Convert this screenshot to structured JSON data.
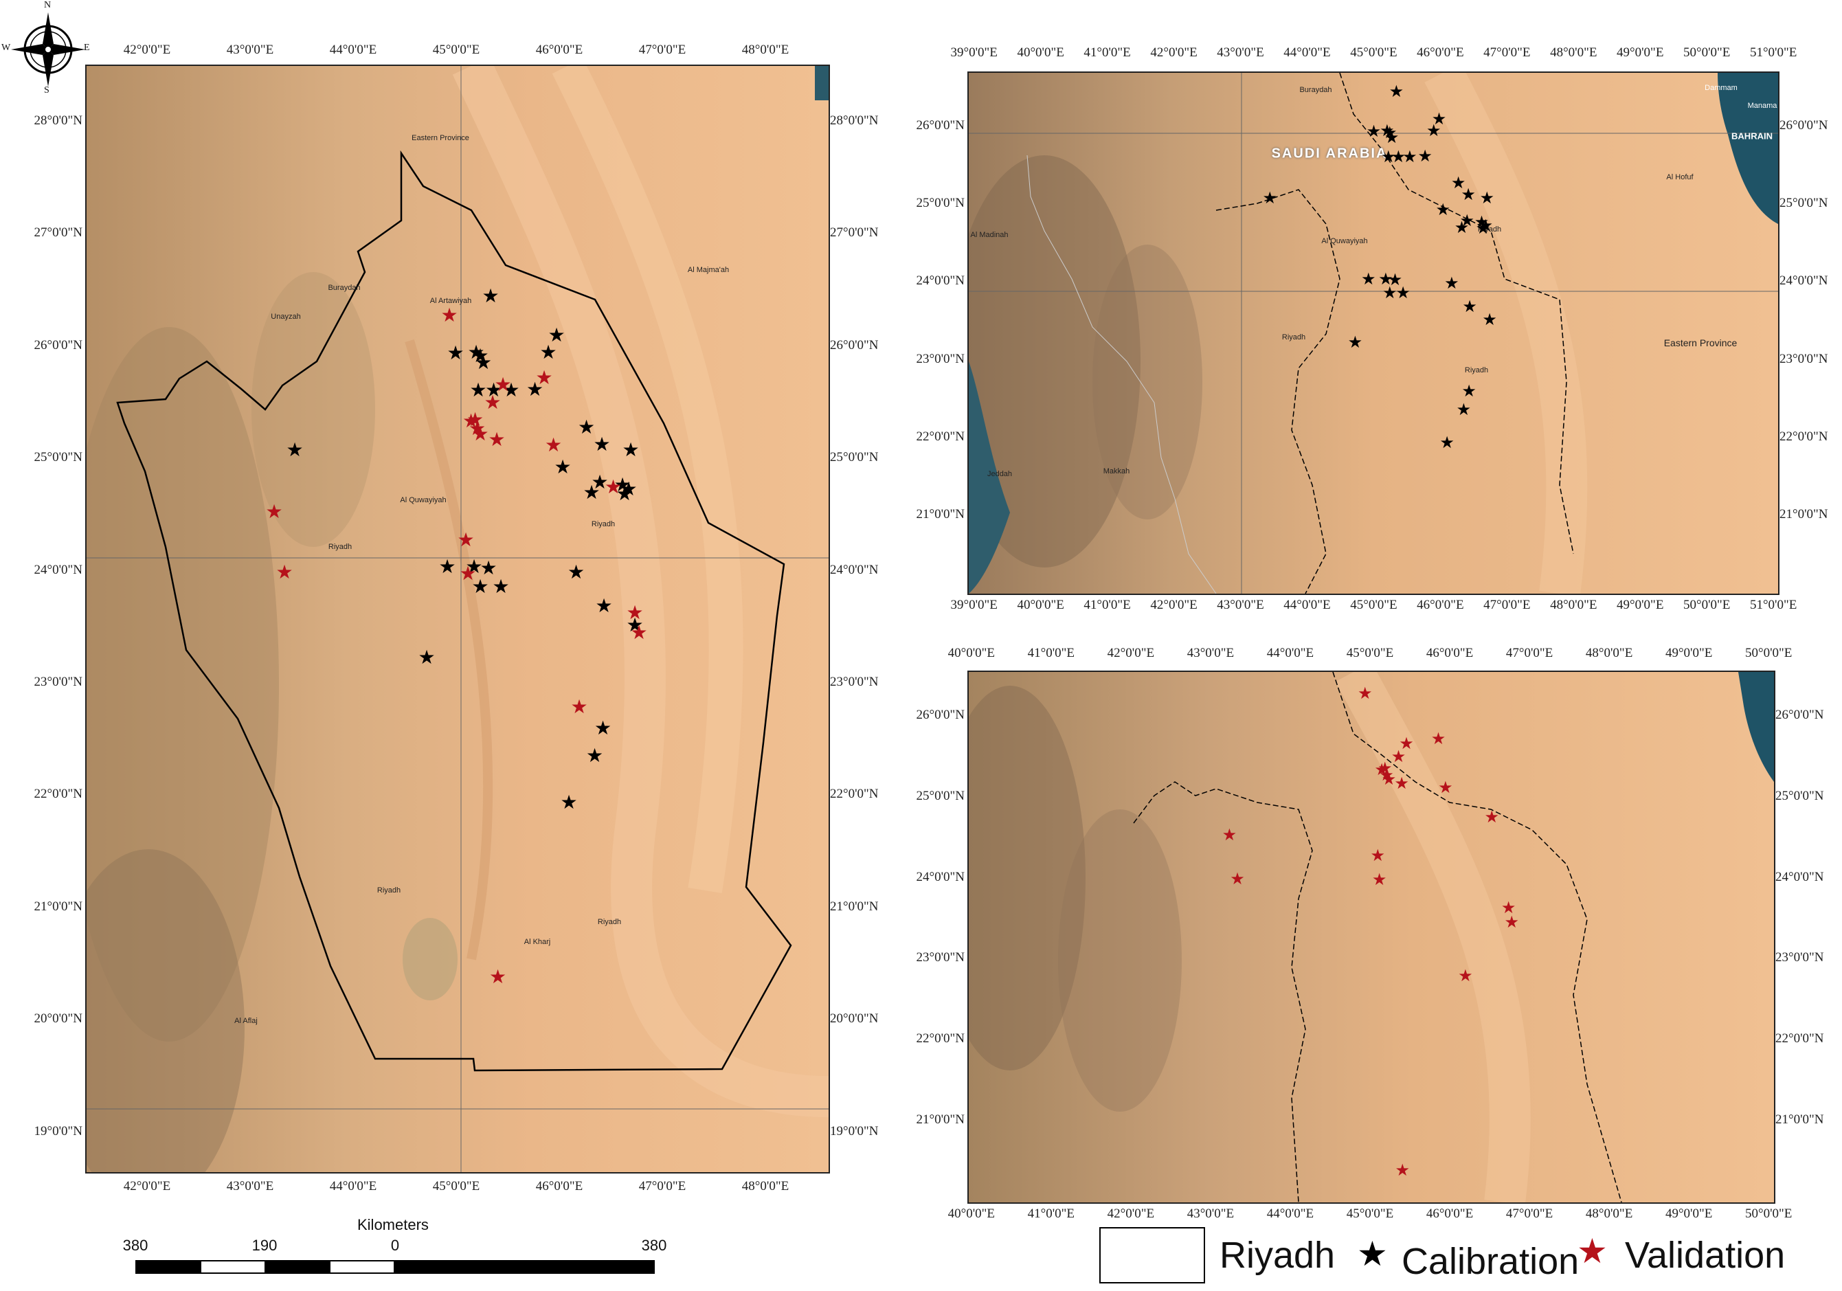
{
  "compass": {
    "n": "N",
    "s": "S",
    "e": "E",
    "w": "W"
  },
  "left_map": {
    "lon_ticks": [
      "42°0'0\"E",
      "43°0'0\"E",
      "44°0'0\"E",
      "45°0'0\"E",
      "46°0'0\"E",
      "47°0'0\"E",
      "48°0'0\"E"
    ],
    "lat_ticks_left": [
      "28°0'0\"N",
      "27°0'0\"N",
      "26°0'0\"N",
      "25°0'0\"N",
      "24°0'0\"N",
      "23°0'0\"N",
      "22°0'0\"N",
      "21°0'0\"N",
      "20°0'0\"N",
      "19°0'0\"N"
    ],
    "lat_ticks_right": [
      "28°0'0\"N",
      "27°0'0\"N",
      "26°0'0\"N",
      "25°0'0\"N",
      "24°0'0\"N",
      "23°0'0\"N",
      "22°0'0\"N",
      "21°0'0\"N",
      "20°0'0\"N",
      "19°0'0\"N"
    ],
    "places": [
      "Eastern Province",
      "Al Artawiyah",
      "Al Quwayiyah",
      "Riyadh",
      "Riyadh",
      "Riyadh",
      "Riyadh",
      "Al Kharj",
      "Al Aflaj",
      "Al Majma'ah",
      "Unayzah",
      "Buraydah"
    ]
  },
  "top_right_map": {
    "lon_ticks": [
      "39°0'0\"E",
      "40°0'0\"E",
      "41°0'0\"E",
      "42°0'0\"E",
      "43°0'0\"E",
      "44°0'0\"E",
      "45°0'0\"E",
      "46°0'0\"E",
      "47°0'0\"E",
      "48°0'0\"E",
      "49°0'0\"E",
      "50°0'0\"E",
      "51°0'0\"E"
    ],
    "lat_ticks": [
      "26°0'0\"N",
      "25°0'0\"N",
      "24°0'0\"N",
      "23°0'0\"N",
      "22°0'0\"N",
      "21°0'0\"N"
    ],
    "places": [
      "SAUDI ARABIA",
      "BAHRAIN",
      "Eastern Province",
      "Riyadh",
      "Riyadh",
      "Riyadh",
      "Al Quwayiyah",
      "Buraydah",
      "Dammam",
      "Manama",
      "Al Hofuf",
      "Al Madinah",
      "Makkah",
      "Jeddah"
    ]
  },
  "bottom_right_map": {
    "lon_ticks": [
      "40°0'0\"E",
      "41°0'0\"E",
      "42°0'0\"E",
      "43°0'0\"E",
      "44°0'0\"E",
      "45°0'0\"E",
      "46°0'0\"E",
      "47°0'0\"E",
      "48°0'0\"E",
      "49°0'0\"E",
      "50°0'0\"E"
    ],
    "lat_ticks": [
      "26°0'0\"N",
      "25°0'0\"N",
      "24°0'0\"N",
      "23°0'0\"N",
      "22°0'0\"N",
      "21°0'0\"N"
    ]
  },
  "scale_bar": {
    "title": "Kilometers",
    "labels": [
      "380",
      "190",
      "0",
      "380"
    ]
  },
  "legend": {
    "region": "Riyadh",
    "calibration": "Calibration",
    "validation": "Validation"
  },
  "colors": {
    "calibration": "#000000",
    "validation": "#b5121b",
    "desert": "#e8b486",
    "boundary": "#000000"
  },
  "chart_data": {
    "type": "scatter",
    "calibration_points_lonlat": [
      [
        45.32,
        26.45
      ],
      [
        45.96,
        26.1
      ],
      [
        45.18,
        25.95
      ],
      [
        45.88,
        25.95
      ],
      [
        44.98,
        25.94
      ],
      [
        45.22,
        25.92
      ],
      [
        45.25,
        25.86
      ],
      [
        45.2,
        25.61
      ],
      [
        45.35,
        25.61
      ],
      [
        45.52,
        25.61
      ],
      [
        45.75,
        25.62
      ],
      [
        46.25,
        25.28
      ],
      [
        46.4,
        25.13
      ],
      [
        46.68,
        25.08
      ],
      [
        46.02,
        24.93
      ],
      [
        46.38,
        24.79
      ],
      [
        46.6,
        24.77
      ],
      [
        46.66,
        24.73
      ],
      [
        46.3,
        24.7
      ],
      [
        46.62,
        24.69
      ],
      [
        43.42,
        25.08
      ],
      [
        44.9,
        24.04
      ],
      [
        45.16,
        24.04
      ],
      [
        45.3,
        24.03
      ],
      [
        45.22,
        23.86
      ],
      [
        45.42,
        23.86
      ],
      [
        46.15,
        23.99
      ],
      [
        46.42,
        23.69
      ],
      [
        46.72,
        23.52
      ],
      [
        44.7,
        23.23
      ],
      [
        46.41,
        22.6
      ],
      [
        46.33,
        22.36
      ],
      [
        46.08,
        21.94
      ]
    ],
    "validation_points_lonlat": [
      [
        44.92,
        26.28
      ],
      [
        45.44,
        25.66
      ],
      [
        45.84,
        25.72
      ],
      [
        45.34,
        25.5
      ],
      [
        45.17,
        25.35
      ],
      [
        45.19,
        25.27
      ],
      [
        45.22,
        25.22
      ],
      [
        45.13,
        25.34
      ],
      [
        45.38,
        25.17
      ],
      [
        45.93,
        25.12
      ],
      [
        46.51,
        24.75
      ],
      [
        43.22,
        24.53
      ],
      [
        45.08,
        24.28
      ],
      [
        45.1,
        23.98
      ],
      [
        43.32,
        23.99
      ],
      [
        46.72,
        23.63
      ],
      [
        46.76,
        23.45
      ],
      [
        46.18,
        22.79
      ],
      [
        45.39,
        20.39
      ]
    ]
  }
}
